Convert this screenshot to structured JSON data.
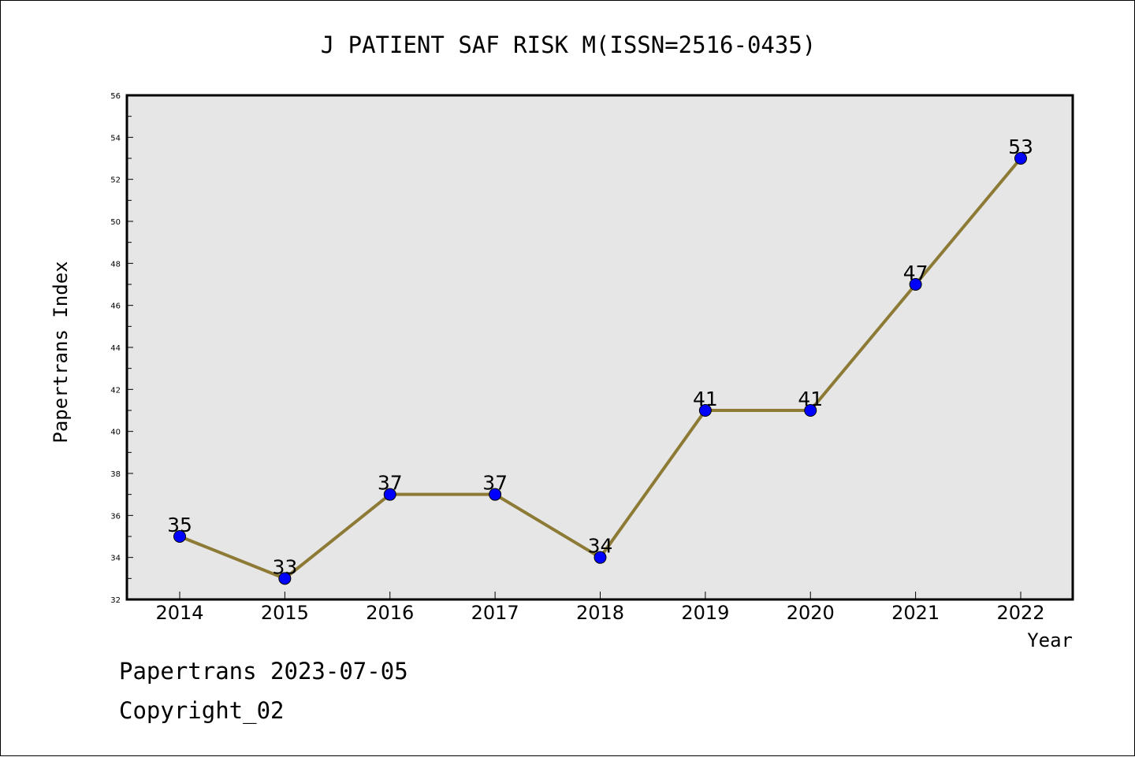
{
  "chart_data": {
    "type": "line",
    "title": "J PATIENT SAF RISK M(ISSN=2516-0435)",
    "xlabel": "Year",
    "ylabel": "Papertrans Index",
    "categories": [
      "2014",
      "2015",
      "2016",
      "2017",
      "2018",
      "2019",
      "2020",
      "2021",
      "2022"
    ],
    "series": [
      {
        "values": [
          35,
          33,
          37,
          37,
          34,
          41,
          41,
          47,
          53
        ]
      }
    ],
    "data_labels": [
      "35",
      "33",
      "37",
      "37",
      "34",
      "41",
      "41",
      "47",
      "53"
    ],
    "ylim": [
      32,
      56
    ],
    "yticks": [
      "32",
      "34",
      "36",
      "38",
      "40",
      "42",
      "44",
      "46",
      "48",
      "50",
      "52",
      "54",
      "56"
    ],
    "grid": false,
    "legend": "none",
    "colors": {
      "line": "#8c7a35",
      "marker": "#0000ff",
      "plot_background": "#e6e6e6"
    }
  },
  "footer": {
    "line1": "Papertrans 2023-07-05",
    "line2": "Copyright_02"
  }
}
